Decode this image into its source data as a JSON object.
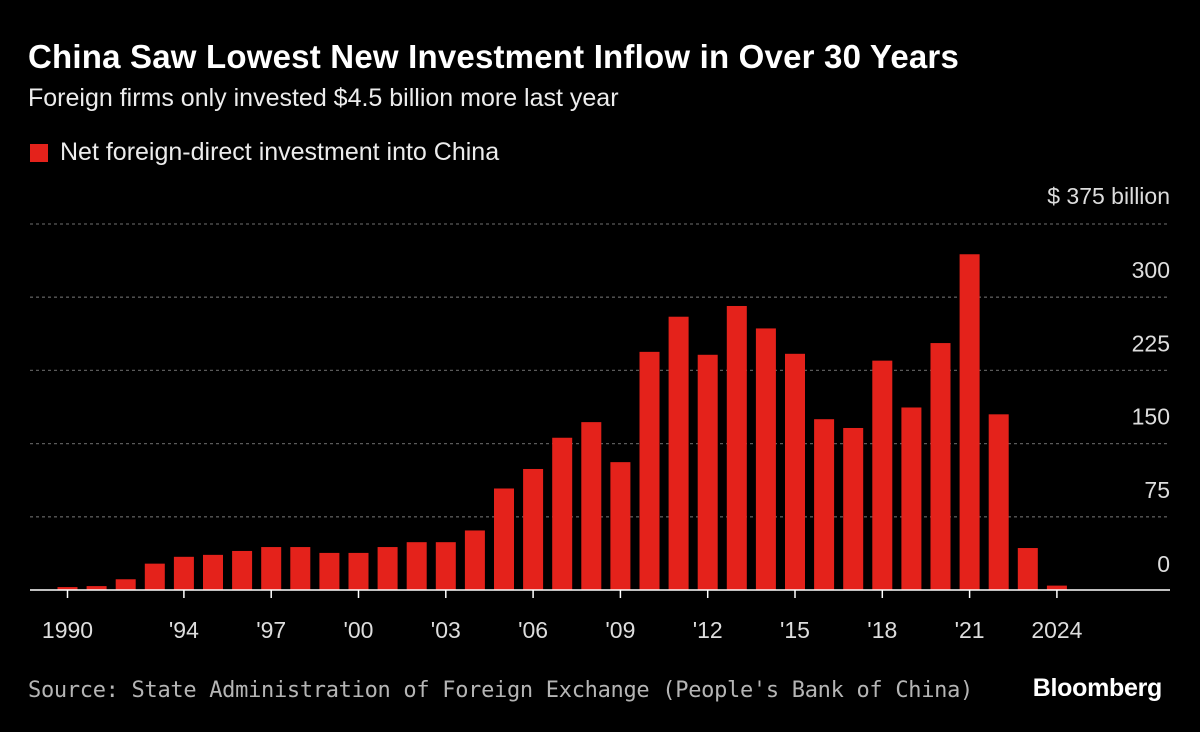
{
  "chart_data": {
    "type": "bar",
    "title": "China Saw Lowest New Investment Inflow in Over 30 Years",
    "subtitle": "Foreign firms only invested $4.5 billion more last year",
    "legend": [
      "Net foreign-direct investment into China"
    ],
    "years": [
      1990,
      1991,
      1992,
      1993,
      1994,
      1995,
      1996,
      1997,
      1998,
      1999,
      2000,
      2001,
      2002,
      2003,
      2004,
      2005,
      2006,
      2007,
      2008,
      2009,
      2010,
      2011,
      2012,
      2013,
      2014,
      2015,
      2016,
      2017,
      2018,
      2019,
      2020,
      2021,
      2022,
      2023,
      2024
    ],
    "values": [
      3,
      4,
      11,
      27,
      34,
      36,
      40,
      44,
      44,
      38,
      38,
      44,
      49,
      49,
      61,
      104,
      124,
      156,
      172,
      131,
      244,
      280,
      241,
      291,
      268,
      242,
      175,
      166,
      235,
      187,
      253,
      344,
      180,
      43,
      4.5
    ],
    "x_tick_labels": [
      {
        "year": 1990,
        "label": "1990"
      },
      {
        "year": 1994,
        "label": "'94"
      },
      {
        "year": 1997,
        "label": "'97"
      },
      {
        "year": 2000,
        "label": "'00"
      },
      {
        "year": 2003,
        "label": "'03"
      },
      {
        "year": 2006,
        "label": "'06"
      },
      {
        "year": 2009,
        "label": "'09"
      },
      {
        "year": 2012,
        "label": "'12"
      },
      {
        "year": 2015,
        "label": "'15"
      },
      {
        "year": 2018,
        "label": "'18"
      },
      {
        "year": 2021,
        "label": "'21"
      },
      {
        "year": 2024,
        "label": "2024"
      }
    ],
    "y_ticks": [
      {
        "value": 0,
        "label": "0"
      },
      {
        "value": 75,
        "label": "75"
      },
      {
        "value": 150,
        "label": "150"
      },
      {
        "value": 225,
        "label": "225"
      },
      {
        "value": 300,
        "label": "300"
      },
      {
        "value": 375,
        "label": "$ 375 billion"
      }
    ],
    "ylim": [
      0,
      375
    ],
    "bar_color": "#e4221b",
    "grid": true
  },
  "source": "Source: State Administration of Foreign Exchange (People's Bank of China)",
  "logo": "Bloomberg",
  "colors": {
    "background": "#000000",
    "text": "#ffffff",
    "grid": "#5a5a5a"
  }
}
